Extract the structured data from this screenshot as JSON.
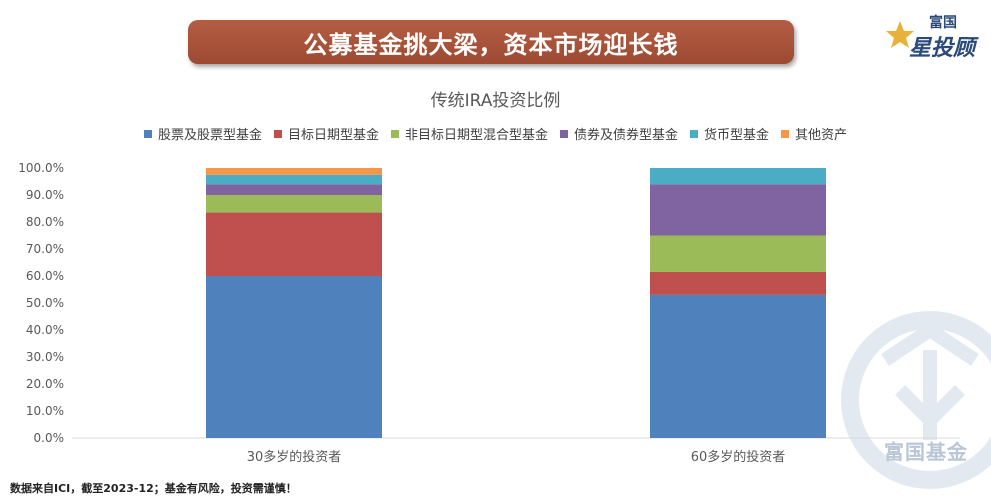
{
  "banner": {
    "title": "公募基金挑大梁，资本市场迎长钱"
  },
  "logo": {
    "line1": "富国",
    "line2": "星投顾"
  },
  "watermark": {
    "text": "富国基金"
  },
  "footnote": "数据来自ICI，截至2023-12；基金有风险，投资需谨慎！",
  "colors": {
    "banner": "#a85339",
    "series": [
      "#4f81bd",
      "#c0504d",
      "#9bbb59",
      "#8064a2",
      "#4bacc6",
      "#f79646"
    ]
  },
  "chart_data": {
    "type": "bar",
    "stacked": true,
    "title": "传统IRA投资比例",
    "categories": [
      "30多岁的投资者",
      "60多岁的投资者"
    ],
    "series": [
      {
        "name": "股票及股票型基金",
        "values": [
          60.0,
          53.0
        ]
      },
      {
        "name": "目标日期型基金",
        "values": [
          23.5,
          8.5
        ]
      },
      {
        "name": "非目标日期型混合型基金",
        "values": [
          6.5,
          13.5
        ]
      },
      {
        "name": "债券及债券型基金",
        "values": [
          4.0,
          19.0
        ]
      },
      {
        "name": "货币型基金",
        "values": [
          3.5,
          6.0
        ]
      },
      {
        "name": "其他资产",
        "values": [
          2.5,
          0.0
        ]
      }
    ],
    "ylim": [
      0,
      100
    ],
    "yticks": [
      "0.0%",
      "10.0%",
      "20.0%",
      "30.0%",
      "40.0%",
      "50.0%",
      "60.0%",
      "70.0%",
      "80.0%",
      "90.0%",
      "100.0%"
    ],
    "legend_position": "top",
    "grid": false
  }
}
